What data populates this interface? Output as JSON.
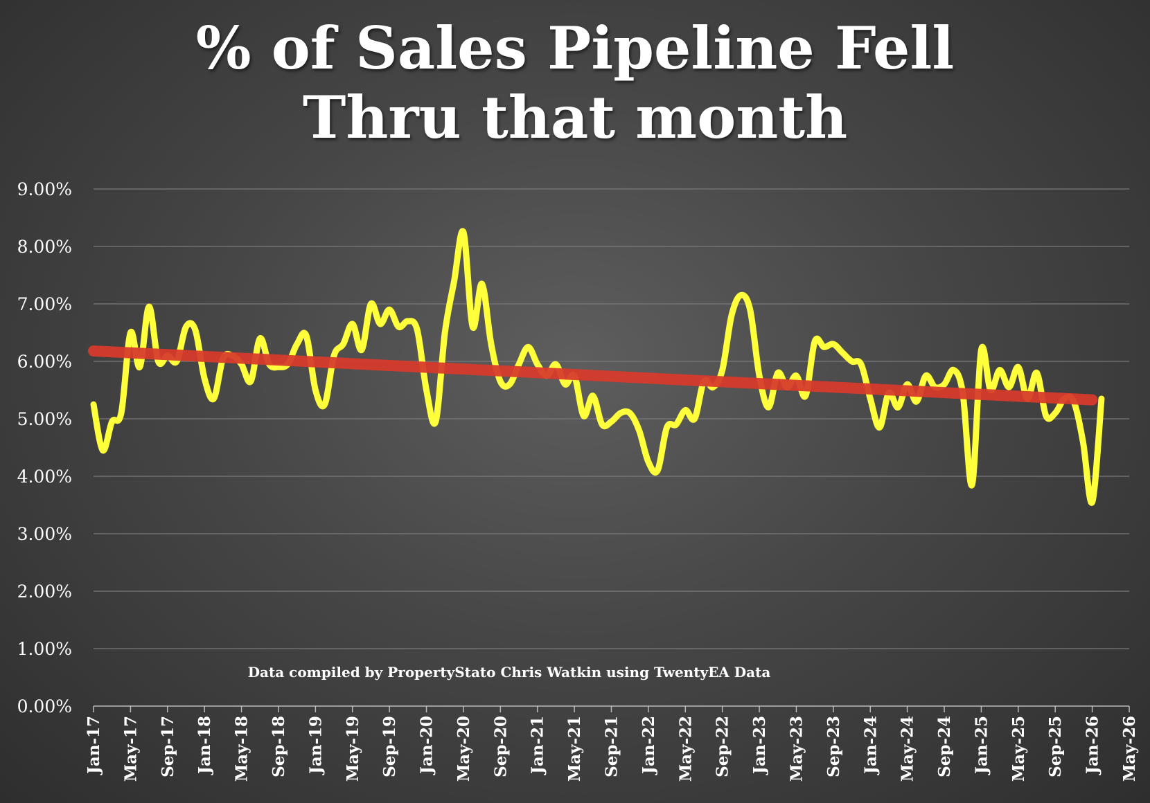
{
  "chart_data": {
    "type": "line",
    "title_line1": "% of Sales Pipeline Fell",
    "title_line2": "Thru that month",
    "annotation": "Data compiled by PropertyStato Chris Watkin using TwentyEA Data",
    "xlabel": "",
    "ylabel": "",
    "ylim": [
      0,
      9
    ],
    "y_ticks": [
      "0.00%",
      "1.00%",
      "2.00%",
      "3.00%",
      "4.00%",
      "5.00%",
      "6.00%",
      "7.00%",
      "8.00%",
      "9.00%"
    ],
    "x_ticks": [
      "Jan-17",
      "May-17",
      "Sep-17",
      "Jan-18",
      "May-18",
      "Sep-18",
      "Jan-19",
      "May-19",
      "Sep-19",
      "Jan-20",
      "May-20",
      "Sep-20",
      "Jan-21",
      "May-21",
      "Sep-21",
      "Jan-22",
      "May-22",
      "Sep-22",
      "Jan-23",
      "May-23",
      "Sep-23",
      "Jan-24",
      "May-24",
      "Sep-24",
      "Jan-25",
      "May-25",
      "Sep-25",
      "Jan-26",
      "May-26"
    ],
    "grid": "horizontal",
    "colors": {
      "series": "#ffff3c",
      "trend": "#d93a2b",
      "grid": "#7a7a7a",
      "axis": "#bcbcbc"
    },
    "series": [
      {
        "start": "2017-01",
        "values": [
          5.25,
          4.45,
          4.95,
          5.1,
          6.5,
          5.9,
          6.95,
          6.0,
          6.1,
          6.0,
          6.6,
          6.55,
          5.7,
          5.35,
          6.05,
          6.1,
          5.95,
          5.65,
          6.4,
          5.95,
          5.9,
          5.95,
          6.3,
          6.45,
          5.5,
          5.25,
          6.1,
          6.3,
          6.65,
          6.2,
          7.0,
          6.65,
          6.9,
          6.6,
          6.7,
          6.55,
          5.5,
          4.95,
          6.5,
          7.4,
          8.25,
          6.6,
          7.35,
          6.3,
          5.65,
          5.6,
          5.95,
          6.25,
          5.95,
          5.75,
          5.95,
          5.6,
          5.75,
          5.05,
          5.4,
          4.9,
          4.95,
          5.1,
          5.1,
          4.8,
          4.25,
          4.1,
          4.85,
          4.9,
          5.15,
          5.0,
          5.65,
          5.55,
          5.85,
          6.8,
          7.15,
          6.9,
          5.75,
          5.2,
          5.8,
          5.55,
          5.75,
          5.4,
          6.35,
          6.25,
          6.3,
          6.15,
          6.0,
          5.95,
          5.35,
          4.85,
          5.45,
          5.2,
          5.6,
          5.3,
          5.75,
          5.55,
          5.6,
          5.85,
          5.45,
          3.85,
          6.2,
          5.5,
          5.85,
          5.55,
          5.9,
          5.35,
          5.8,
          5.05,
          5.1,
          5.35,
          5.3,
          4.6,
          3.55,
          5.35
        ]
      },
      {
        "name": "trend",
        "x": [
          "2017-01",
          "2026-01"
        ],
        "values": [
          6.18,
          5.33
        ]
      }
    ]
  }
}
